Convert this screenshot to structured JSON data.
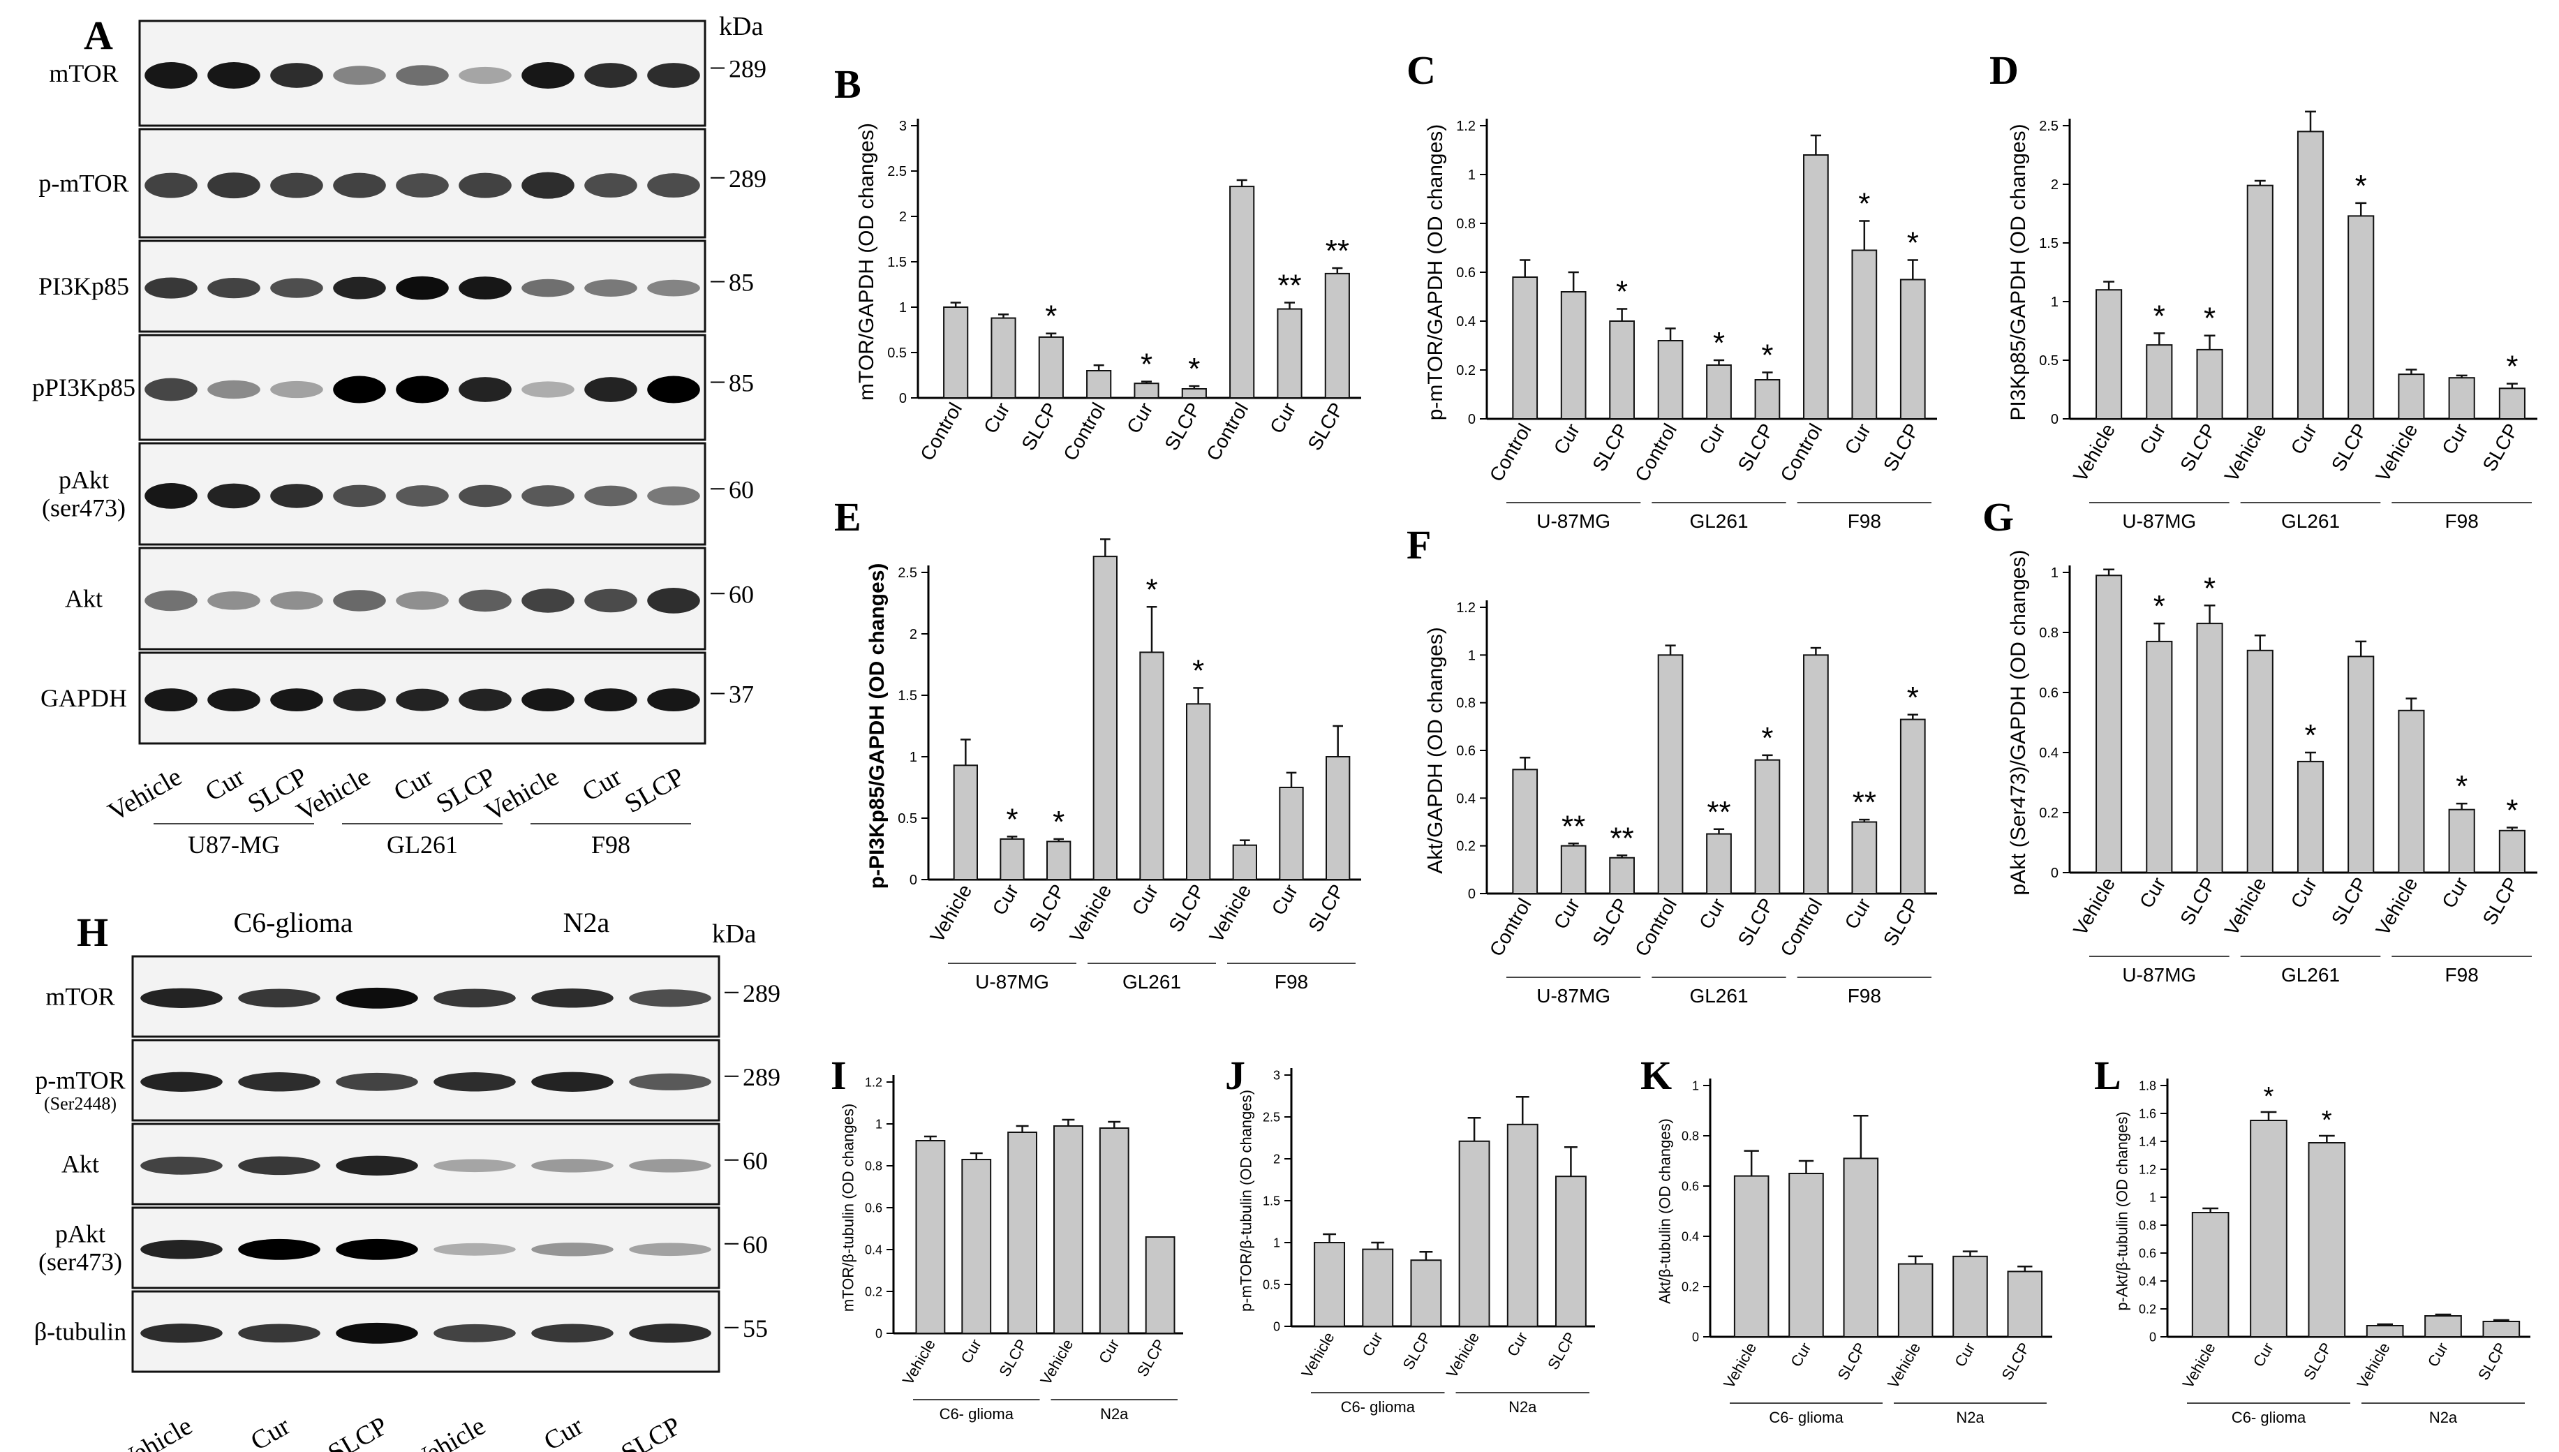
{
  "blot_A": {
    "letter": "A",
    "unit": "kDa",
    "rows": [
      {
        "label": [
          "mTOR"
        ],
        "marker": "289",
        "bands": [
          0.95,
          0.95,
          0.85,
          0.45,
          0.55,
          0.3,
          0.95,
          0.85,
          0.85
        ],
        "darkness": 0.9
      },
      {
        "label": [
          "p-mTOR"
        ],
        "marker": "289",
        "bands": [
          0.8,
          0.85,
          0.8,
          0.8,
          0.75,
          0.8,
          0.9,
          0.75,
          0.75
        ],
        "darkness": 0.85
      },
      {
        "label": [
          "PI3Kp85"
        ],
        "marker": "85",
        "bands": [
          0.8,
          0.75,
          0.7,
          0.9,
          1.0,
          0.95,
          0.55,
          0.5,
          0.45
        ],
        "darkness": 0.9
      },
      {
        "label": [
          "pPI3Kp85"
        ],
        "marker": "85",
        "bands": [
          0.7,
          0.4,
          0.3,
          1.0,
          1.0,
          0.85,
          0.25,
          0.85,
          1.0
        ],
        "darkness": 0.95
      },
      {
        "label": [
          "pAkt",
          "(ser473)"
        ],
        "marker": "60",
        "bands": [
          0.95,
          0.9,
          0.85,
          0.7,
          0.65,
          0.7,
          0.65,
          0.6,
          0.5
        ],
        "darkness": 0.9
      },
      {
        "label": [
          "Akt"
        ],
        "marker": "60",
        "bands": [
          0.6,
          0.45,
          0.45,
          0.65,
          0.45,
          0.7,
          0.85,
          0.8,
          0.95
        ],
        "darkness": 0.8
      },
      {
        "label": [
          "GAPDH"
        ],
        "marker": "37",
        "bands": [
          0.95,
          0.95,
          0.95,
          0.9,
          0.9,
          0.9,
          0.95,
          0.95,
          0.95
        ],
        "darkness": 0.9
      }
    ],
    "lanes": [
      "Vehicle",
      "Cur",
      "SLCP",
      "Vehicle",
      "Cur",
      "SLCP",
      "Vehicle",
      "Cur",
      "SLCP"
    ],
    "groups": [
      "U87-MG",
      "GL261",
      "F98"
    ]
  },
  "blot_H": {
    "letter": "H",
    "unit": "kDa",
    "top_groups": [
      "C6-glioma",
      "N2a"
    ],
    "rows": [
      {
        "label": [
          "mTOR"
        ],
        "sub": "",
        "marker": "289",
        "bands": [
          0.9,
          0.8,
          1.0,
          0.8,
          0.85,
          0.7
        ],
        "darkness": 0.9
      },
      {
        "label": [
          "p-mTOR"
        ],
        "sub": "(Ser2448)",
        "marker": "289",
        "bands": [
          0.9,
          0.85,
          0.75,
          0.85,
          0.9,
          0.65
        ],
        "darkness": 0.9
      },
      {
        "label": [
          "Akt"
        ],
        "sub": "",
        "marker": "60",
        "bands": [
          0.75,
          0.8,
          0.9,
          0.3,
          0.35,
          0.35
        ],
        "darkness": 0.9
      },
      {
        "label": [
          "pAkt",
          "(ser473)"
        ],
        "sub": "",
        "marker": "60",
        "bands": [
          0.85,
          1.0,
          1.0,
          0.25,
          0.35,
          0.3
        ],
        "darkness": 0.95
      },
      {
        "label": [
          "β-tubulin"
        ],
        "sub": "",
        "marker": "55",
        "bands": [
          0.85,
          0.8,
          1.0,
          0.75,
          0.8,
          0.85
        ],
        "darkness": 0.9
      }
    ],
    "lanes": [
      "Vehicle",
      "Cur",
      "SLCP",
      "Vehicle",
      "Cur",
      "SLCP"
    ]
  },
  "chart_data": [
    {
      "id": "B",
      "type": "bar",
      "ylabel": "mTOR/GAPDH (OD changes)",
      "ylim": [
        0,
        3.0
      ],
      "yticks": [
        0,
        0.5,
        1.0,
        1.5,
        2.0,
        2.5,
        3.0
      ],
      "categories": [
        "Control",
        "Cur",
        "SLCP",
        "Control",
        "Cur",
        "SLCP",
        "Control",
        "Cur",
        "SLCP"
      ],
      "values": [
        1.0,
        0.88,
        0.67,
        0.3,
        0.16,
        0.1,
        2.33,
        0.98,
        1.37
      ],
      "errors": [
        0.05,
        0.04,
        0.04,
        0.06,
        0.02,
        0.03,
        0.07,
        0.07,
        0.06
      ],
      "marks": [
        "",
        "",
        "*",
        "",
        "*",
        "*",
        "",
        "**",
        "**"
      ],
      "groups": []
    },
    {
      "id": "C",
      "type": "bar",
      "ylabel": "p-mTOR/GAPDH (OD changes)",
      "ylim": [
        0,
        1.2
      ],
      "yticks": [
        0,
        0.2,
        0.4,
        0.6,
        0.8,
        1.0,
        1.2
      ],
      "categories": [
        "Control",
        "Cur",
        "SLCP",
        "Control",
        "Cur",
        "SLCP",
        "Control",
        "Cur",
        "SLCP"
      ],
      "values": [
        0.58,
        0.52,
        0.4,
        0.32,
        0.22,
        0.16,
        1.08,
        0.69,
        0.57
      ],
      "errors": [
        0.07,
        0.08,
        0.05,
        0.05,
        0.02,
        0.03,
        0.08,
        0.12,
        0.08
      ],
      "marks": [
        "",
        "",
        "*",
        "",
        "*",
        "*",
        "",
        "*",
        "*"
      ],
      "groups": [
        "U-87MG",
        "GL261",
        "F98"
      ]
    },
    {
      "id": "D",
      "type": "bar",
      "ylabel": "PI3Kp85/GAPDH (OD changes)",
      "ylim": [
        0,
        2.5
      ],
      "yticks": [
        0,
        0.5,
        1.0,
        1.5,
        2.0,
        2.5
      ],
      "categories": [
        "Vehicle",
        "Cur",
        "SLCP",
        "Vehicle",
        "Cur",
        "SLCP",
        "Vehicle",
        "Cur",
        "SLCP"
      ],
      "values": [
        1.1,
        0.63,
        0.59,
        1.99,
        2.45,
        1.73,
        0.38,
        0.35,
        0.26
      ],
      "errors": [
        0.07,
        0.1,
        0.12,
        0.04,
        0.17,
        0.11,
        0.04,
        0.02,
        0.04
      ],
      "marks": [
        "",
        "*",
        "*",
        "",
        "",
        "*",
        "",
        "",
        "*"
      ],
      "groups": [
        "U-87MG",
        "GL261",
        "F98"
      ]
    },
    {
      "id": "E",
      "type": "bar",
      "ylabel": "p-PI3Kp85/GAPDH (OD changes)",
      "ylim": [
        0,
        2.5
      ],
      "yticks": [
        0,
        0.5,
        1.0,
        1.5,
        2.0,
        2.5
      ],
      "categories": [
        "Vehicle",
        "Cur",
        "SLCP",
        "Vehicle",
        "Cur",
        "SLCP",
        "Vehicle",
        "Cur",
        "SLCP"
      ],
      "values": [
        0.93,
        0.33,
        0.31,
        2.63,
        1.85,
        1.43,
        0.28,
        0.75,
        1.0
      ],
      "errors": [
        0.21,
        0.02,
        0.02,
        0.14,
        0.37,
        0.13,
        0.04,
        0.12,
        0.25
      ],
      "marks": [
        "",
        "*",
        "*",
        "",
        "*",
        "*",
        "",
        "",
        ""
      ],
      "groups": [
        "U-87MG",
        "GL261",
        "F98"
      ]
    },
    {
      "id": "F",
      "type": "bar",
      "ylabel": "Akt/GAPDH (OD changes)",
      "ylim": [
        0,
        1.2
      ],
      "yticks": [
        0,
        0.2,
        0.4,
        0.6,
        0.8,
        1.0,
        1.2
      ],
      "categories": [
        "Control",
        "Cur",
        "SLCP",
        "Control",
        "Cur",
        "SLCP",
        "Control",
        "Cur",
        "SLCP"
      ],
      "values": [
        0.52,
        0.2,
        0.15,
        1.0,
        0.25,
        0.56,
        1.0,
        0.3,
        0.73
      ],
      "errors": [
        0.05,
        0.01,
        0.01,
        0.04,
        0.02,
        0.02,
        0.03,
        0.01,
        0.02
      ],
      "marks": [
        "",
        "**",
        "**",
        "",
        "**",
        "*",
        "",
        "**",
        "*"
      ],
      "groups": [
        "U-87MG",
        "GL261",
        "F98"
      ]
    },
    {
      "id": "G",
      "type": "bar",
      "ylabel": "pAkt (Ser473)/GAPDH (OD changes)",
      "ylim": [
        0,
        1.0
      ],
      "yticks": [
        0,
        0.2,
        0.4,
        0.6,
        0.8,
        1.0
      ],
      "categories": [
        "Vehicle",
        "Cur",
        "SLCP",
        "Vehicle",
        "Cur",
        "SLCP",
        "Vehicle",
        "Cur",
        "SLCP"
      ],
      "values": [
        0.99,
        0.77,
        0.83,
        0.74,
        0.37,
        0.72,
        0.54,
        0.21,
        0.14
      ],
      "errors": [
        0.02,
        0.06,
        0.06,
        0.05,
        0.03,
        0.05,
        0.04,
        0.02,
        0.01
      ],
      "marks": [
        "",
        "*",
        "*",
        "",
        "*",
        "",
        "",
        "*",
        "*"
      ],
      "groups": [
        "U-87MG",
        "GL261",
        "F98"
      ]
    },
    {
      "id": "I",
      "type": "bar",
      "ylabel": "mTOR/β-tubulin (OD changes)",
      "ylim": [
        0,
        1.2
      ],
      "yticks": [
        0,
        0.2,
        0.4,
        0.6,
        0.8,
        1.0,
        1.2
      ],
      "categories": [
        "Vehicle",
        "Cur",
        "SLCP",
        "Vehicle",
        "Cur",
        "SLCP"
      ],
      "values": [
        0.92,
        0.83,
        0.96,
        0.99,
        0.98,
        0.46
      ],
      "errors": [
        0.02,
        0.03,
        0.03,
        0.03,
        0.03,
        0
      ],
      "marks": [
        "",
        "",
        "",
        "",
        "",
        ""
      ],
      "groups": [
        "C6- glioma",
        "N2a"
      ]
    },
    {
      "id": "J",
      "type": "bar",
      "ylabel": "p-mTOR/β-tubulin (OD changes)",
      "ylim": [
        0,
        3.0
      ],
      "yticks": [
        0,
        0.5,
        1.0,
        1.5,
        2.0,
        2.5,
        3.0
      ],
      "categories": [
        "Vehicle",
        "Cur",
        "SLCP",
        "Vehicle",
        "Cur",
        "SLCP"
      ],
      "values": [
        1.0,
        0.92,
        0.79,
        2.21,
        2.41,
        1.79
      ],
      "errors": [
        0.1,
        0.08,
        0.1,
        0.28,
        0.33,
        0.35
      ],
      "marks": [
        "",
        "",
        "",
        "",
        "",
        ""
      ],
      "groups": [
        "C6- glioma",
        "N2a"
      ]
    },
    {
      "id": "K",
      "type": "bar",
      "ylabel": "Akt/β-tubulin (OD changes)",
      "ylim": [
        0,
        1.0
      ],
      "yticks": [
        0,
        0.2,
        0.4,
        0.6,
        0.8,
        1.0
      ],
      "categories": [
        "Vehicle",
        "Cur",
        "SLCP",
        "Vehicle",
        "Cur",
        "SLCP"
      ],
      "values": [
        0.64,
        0.65,
        0.71,
        0.29,
        0.32,
        0.26
      ],
      "errors": [
        0.1,
        0.05,
        0.17,
        0.03,
        0.02,
        0.02
      ],
      "marks": [
        "",
        "",
        "",
        "",
        "",
        ""
      ],
      "groups": [
        "C6- glioma",
        "N2a"
      ]
    },
    {
      "id": "L",
      "type": "bar",
      "ylabel": "p-Akt/β-tubulin (OD changes)",
      "ylim": [
        0,
        1.8
      ],
      "yticks": [
        0,
        0.2,
        0.4,
        0.6,
        0.8,
        1.0,
        1.2,
        1.4,
        1.6,
        1.8
      ],
      "categories": [
        "Vehicle",
        "Cur",
        "SLCP",
        "Vehicle",
        "Cur",
        "SLCP"
      ],
      "values": [
        0.89,
        1.55,
        1.39,
        0.08,
        0.15,
        0.11
      ],
      "errors": [
        0.03,
        0.06,
        0.05,
        0.01,
        0.01,
        0.01
      ],
      "marks": [
        "",
        "*",
        "*",
        "",
        "",
        ""
      ],
      "groups": [
        "C6- glioma",
        "N2a"
      ]
    }
  ]
}
